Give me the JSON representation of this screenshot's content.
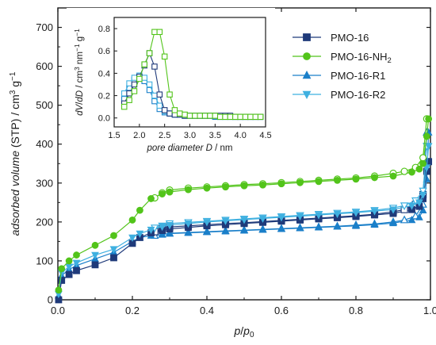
{
  "chart_data": [
    {
      "type": "scatter",
      "xlabel_parts": [
        "p",
        "/",
        "p",
        "0"
      ],
      "ylabel_parts": [
        "adsorbed volume",
        " (STP) / cm",
        "3",
        " g",
        "−1"
      ],
      "xlim": [
        0.0,
        1.0
      ],
      "ylim": [
        0,
        750
      ],
      "xticks": [
        "0.0",
        "0.2",
        "0.4",
        "0.6",
        "0.8",
        "1.0"
      ],
      "yticks": [
        "0",
        "100",
        "200",
        "300",
        "400",
        "500",
        "600",
        "700"
      ],
      "legend_position": "top-right",
      "legend": [
        "PMO-16",
        "PMO-16-NH2",
        "PMO-16-R1",
        "PMO-16-R2"
      ],
      "legend_parts": [
        {
          "main": "PMO-16",
          "sub": ""
        },
        {
          "main": "PMO-16-NH",
          "sub": "2"
        },
        {
          "main": "PMO-16-R1",
          "sub": ""
        },
        {
          "main": "PMO-16-R2",
          "sub": ""
        }
      ],
      "series": [
        {
          "name": "PMO-16",
          "color": "#1f3a7a",
          "marker": "square",
          "adsorption": {
            "x": [
              0.002,
              0.01,
              0.03,
              0.05,
              0.1,
              0.15,
              0.2,
              0.22,
              0.25,
              0.28,
              0.3,
              0.35,
              0.4,
              0.45,
              0.5,
              0.55,
              0.6,
              0.65,
              0.7,
              0.75,
              0.8,
              0.85,
              0.9,
              0.95,
              0.97,
              0.98,
              0.99,
              0.995
            ],
            "y": [
              0,
              50,
              65,
              75,
              90,
              108,
              145,
              160,
              172,
              178,
              182,
              186,
              190,
              193,
              196,
              199,
              202,
              205,
              208,
              211,
              214,
              218,
              222,
              232,
              240,
              260,
              330,
              355
            ]
          },
          "desorption": {
            "x": [
              0.99,
              0.98,
              0.96,
              0.93,
              0.9,
              0.85,
              0.8,
              0.75,
              0.7,
              0.65,
              0.6,
              0.55,
              0.5,
              0.45,
              0.4,
              0.35,
              0.3,
              0.28,
              0.26
            ],
            "y": [
              355,
              270,
              245,
              232,
              226,
              220,
              216,
              213,
              210,
              207,
              204,
              201,
              198,
              196,
              193,
              190,
              187,
              182,
              175
            ]
          }
        },
        {
          "name": "PMO-16-NH2",
          "color": "#52c41a",
          "marker": "circle",
          "adsorption": {
            "x": [
              0.002,
              0.01,
              0.03,
              0.05,
              0.1,
              0.15,
              0.2,
              0.22,
              0.25,
              0.28,
              0.3,
              0.35,
              0.4,
              0.45,
              0.5,
              0.55,
              0.6,
              0.65,
              0.7,
              0.75,
              0.8,
              0.85,
              0.9,
              0.95,
              0.97,
              0.98,
              0.99,
              0.995
            ],
            "y": [
              25,
              80,
              100,
              115,
              140,
              165,
              205,
              230,
              260,
              272,
              277,
              283,
              287,
              290,
              293,
              295,
              298,
              301,
              304,
              307,
              310,
              314,
              318,
              328,
              336,
              350,
              420,
              465
            ]
          },
          "desorption": {
            "x": [
              0.99,
              0.98,
              0.96,
              0.93,
              0.9,
              0.85,
              0.8,
              0.75,
              0.7,
              0.65,
              0.6,
              0.55,
              0.5,
              0.45,
              0.4,
              0.35,
              0.3,
              0.28,
              0.26
            ],
            "y": [
              465,
              365,
              340,
              330,
              325,
              318,
              313,
              310,
              307,
              304,
              301,
              298,
              296,
              293,
              290,
              287,
              282,
              275,
              262
            ]
          }
        },
        {
          "name": "PMO-16-R1",
          "color": "#1a7fc9",
          "marker": "triangle-up",
          "adsorption": {
            "x": [
              0.002,
              0.01,
              0.03,
              0.05,
              0.1,
              0.15,
              0.2,
              0.22,
              0.25,
              0.28,
              0.3,
              0.35,
              0.4,
              0.45,
              0.5,
              0.55,
              0.6,
              0.65,
              0.7,
              0.75,
              0.8,
              0.85,
              0.9,
              0.95,
              0.97,
              0.98,
              0.99,
              0.995
            ],
            "y": [
              10,
              62,
              78,
              88,
              105,
              122,
              150,
              160,
              165,
              168,
              170,
              172,
              174,
              176,
              178,
              180,
              182,
              184,
              186,
              188,
              190,
              193,
              197,
              205,
              212,
              230,
              310,
              430
            ]
          },
          "desorption": {
            "x": [
              0.99,
              0.98,
              0.96,
              0.93,
              0.9,
              0.85,
              0.8,
              0.75,
              0.7,
              0.65,
              0.6,
              0.55,
              0.5,
              0.45,
              0.4,
              0.35,
              0.3,
              0.28,
              0.26
            ],
            "y": [
              430,
              245,
              215,
              205,
              200,
              195,
              192,
              189,
              187,
              185,
              183,
              181,
              179,
              177,
              175,
              173,
              171,
              168,
              165
            ]
          }
        },
        {
          "name": "PMO-16-R2",
          "color": "#3fb0e0",
          "marker": "triangle-down",
          "adsorption": {
            "x": [
              0.002,
              0.01,
              0.03,
              0.05,
              0.1,
              0.15,
              0.2,
              0.22,
              0.25,
              0.28,
              0.3,
              0.35,
              0.4,
              0.45,
              0.5,
              0.55,
              0.6,
              0.65,
              0.7,
              0.75,
              0.8,
              0.85,
              0.9,
              0.95,
              0.97,
              0.98,
              0.99,
              0.995
            ],
            "y": [
              15,
              70,
              85,
              95,
              115,
              130,
              160,
              170,
              180,
              188,
              192,
              196,
              200,
              203,
              206,
              209,
              212,
              215,
              218,
              221,
              224,
              228,
              232,
              242,
              250,
              270,
              340,
              395
            ]
          },
          "desorption": {
            "x": [
              0.99,
              0.98,
              0.96,
              0.93,
              0.9,
              0.85,
              0.8,
              0.75,
              0.7,
              0.65,
              0.6,
              0.55,
              0.5,
              0.45,
              0.4,
              0.35,
              0.3,
              0.28,
              0.26
            ],
            "y": [
              395,
              280,
              255,
              242,
              236,
              230,
              226,
              223,
              220,
              217,
              214,
              211,
              208,
              205,
              202,
              199,
              196,
              190,
              185
            ]
          }
        }
      ]
    },
    {
      "type": "line",
      "xlabel_parts": [
        "pore diameter ",
        "D",
        " / nm"
      ],
      "ylabel_parts": [
        "dV",
        "/",
        "dD",
        " / cm",
        "3",
        " nm",
        "−1",
        " g",
        "−1"
      ],
      "xlim": [
        1.5,
        4.5
      ],
      "ylim": [
        -0.08,
        0.9
      ],
      "xticks": [
        "1.5",
        "2.0",
        "2.5",
        "3.0",
        "3.5",
        "4.0",
        "4.5"
      ],
      "yticks": [
        "0.0",
        "0.2",
        "0.4",
        "0.6",
        "0.8"
      ],
      "series": [
        {
          "name": "PMO-16",
          "color": "#1f3a7a",
          "x": [
            1.7,
            1.8,
            1.9,
            2.0,
            2.1,
            2.2,
            2.3,
            2.4,
            2.5,
            2.6,
            2.7,
            2.8,
            2.9,
            3.0,
            3.1,
            3.2,
            3.3,
            3.4,
            3.5,
            3.6,
            3.7,
            3.8,
            3.9,
            4.0,
            4.1,
            4.2,
            4.3,
            4.4
          ],
          "y": [
            0.13,
            0.22,
            0.3,
            0.37,
            0.47,
            0.58,
            0.46,
            0.21,
            0.07,
            0.04,
            0.03,
            0.03,
            0.02,
            0.02,
            0.02,
            0.02,
            0.02,
            0.02,
            0.02,
            0.02,
            0.02,
            0.02,
            0.01,
            0.01,
            0.01,
            0.01,
            0.01,
            0.01
          ]
        },
        {
          "name": "PMO-16-NH2",
          "color": "#52c41a",
          "x": [
            1.7,
            1.8,
            1.9,
            2.0,
            2.1,
            2.2,
            2.3,
            2.4,
            2.5,
            2.6,
            2.7,
            2.8,
            2.9,
            3.0,
            3.1,
            3.2,
            3.3,
            3.4,
            3.5,
            3.6,
            3.7,
            3.8,
            3.9,
            4.0,
            4.1,
            4.2,
            4.3,
            4.4
          ],
          "y": [
            0.1,
            0.16,
            0.24,
            0.35,
            0.48,
            0.58,
            0.77,
            0.77,
            0.55,
            0.21,
            0.07,
            0.04,
            0.03,
            0.02,
            0.02,
            0.02,
            0.02,
            0.02,
            0.02,
            0.01,
            0.01,
            0.01,
            0.01,
            0.01,
            0.01,
            0.01,
            0.01,
            0.01
          ]
        },
        {
          "name": "PMO-16-R1",
          "color": "#1a7fc9",
          "x": [
            1.7,
            1.8,
            1.9,
            2.0,
            2.1,
            2.2,
            2.3,
            2.4,
            2.5,
            2.6,
            2.7,
            2.8,
            2.9,
            3.0,
            3.1,
            3.2,
            3.3,
            3.4,
            3.5,
            3.6,
            3.7,
            3.8,
            3.9,
            4.0,
            4.1,
            4.2,
            4.3,
            4.4
          ],
          "y": [
            0.17,
            0.27,
            0.34,
            0.37,
            0.33,
            0.25,
            0.15,
            0.08,
            0.05,
            0.04,
            0.03,
            0.03,
            0.02,
            0.02,
            0.02,
            0.02,
            0.02,
            0.02,
            0.01,
            0.01,
            0.01,
            0.01,
            0.01,
            0.01,
            0.01,
            0.01,
            0.01,
            0.01
          ]
        },
        {
          "name": "PMO-16-R2",
          "color": "#3fb0e0",
          "x": [
            1.7,
            1.8,
            1.9,
            2.0,
            2.1,
            2.2,
            2.3,
            2.4,
            2.5,
            2.6,
            2.7,
            2.8,
            2.9,
            3.0,
            3.1,
            3.2,
            3.3,
            3.4,
            3.5,
            3.6,
            3.7,
            3.8,
            3.9,
            4.0,
            4.1,
            4.2,
            4.3,
            4.4
          ],
          "y": [
            0.22,
            0.31,
            0.36,
            0.38,
            0.36,
            0.3,
            0.2,
            0.11,
            0.06,
            0.04,
            0.03,
            0.03,
            0.02,
            0.02,
            0.02,
            0.02,
            0.02,
            0.02,
            0.02,
            0.01,
            0.01,
            0.01,
            0.01,
            0.01,
            0.01,
            0.01,
            0.01,
            0.01
          ]
        }
      ]
    }
  ]
}
